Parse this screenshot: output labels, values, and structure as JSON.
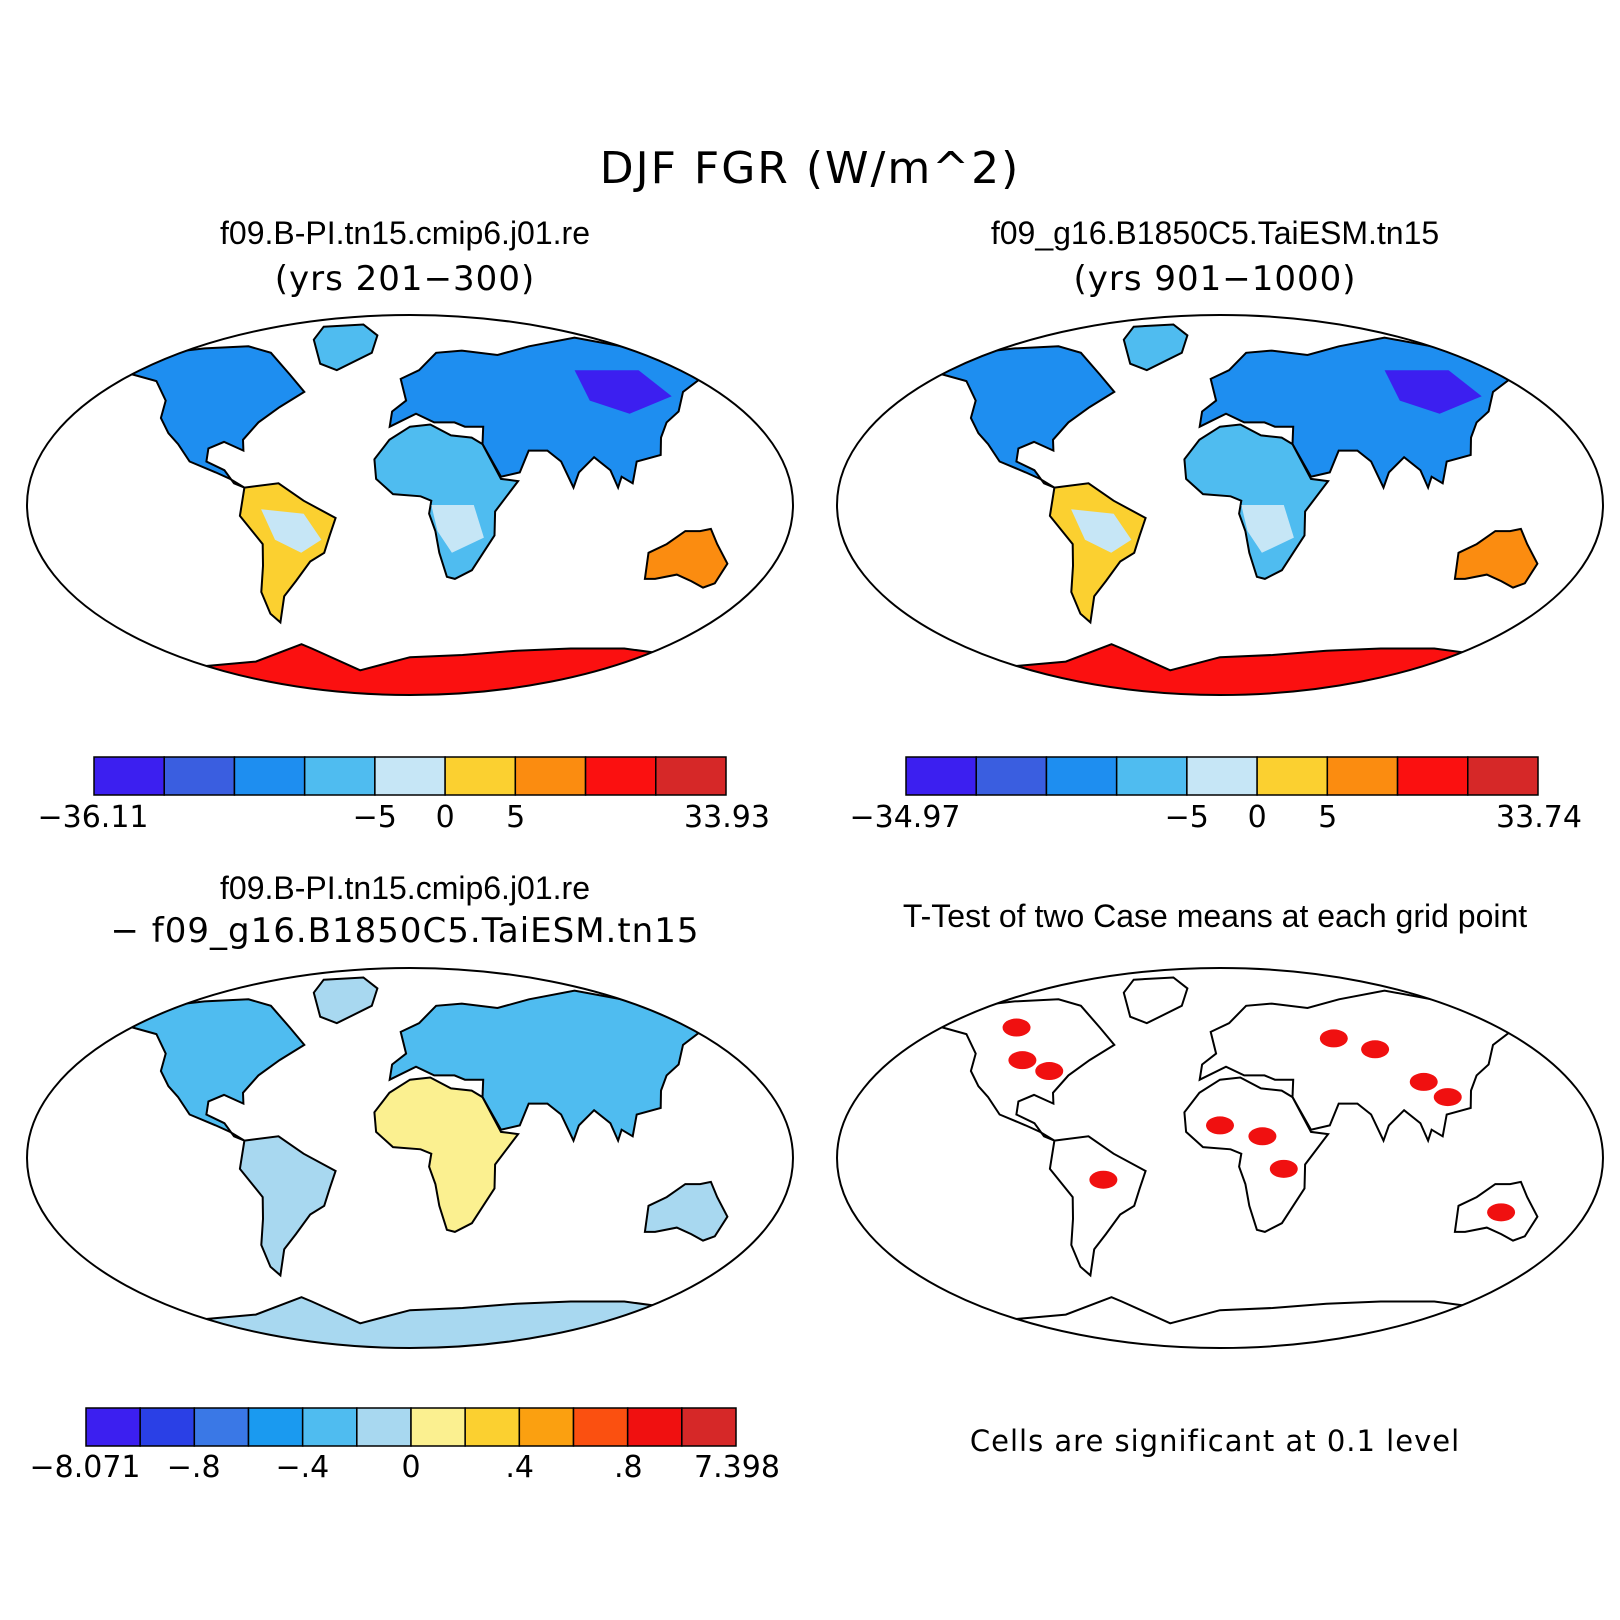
{
  "title": "DJF FGR (W/m^2)",
  "panels": [
    {
      "title": "f09.B-PI.tn15.cmip6.j01.re",
      "subtitle": "(yrs 201−300)",
      "colorbar": {
        "colors": [
          "#3c1ff0",
          "#3a5ee0",
          "#1e8ef0",
          "#4fbcf0",
          "#c6e6f6",
          "#fbd030",
          "#fb8c10",
          "#fb1010",
          "#d62828"
        ],
        "labels": [
          "−36.11",
          "−5",
          "0",
          "5",
          "33.93"
        ],
        "label_boundaries": [
          0,
          4,
          5,
          6,
          9
        ]
      }
    },
    {
      "title": "f09_g16.B1850C5.TaiESM.tn15",
      "subtitle": "(yrs 901−1000)",
      "colorbar": {
        "colors": [
          "#3c1ff0",
          "#3a5ee0",
          "#1e8ef0",
          "#4fbcf0",
          "#c6e6f6",
          "#fbd030",
          "#fb8c10",
          "#fb1010",
          "#d62828"
        ],
        "labels": [
          "−34.97",
          "−5",
          "0",
          "5",
          "33.74"
        ],
        "label_boundaries": [
          0,
          4,
          5,
          6,
          9
        ]
      }
    },
    {
      "title": "f09.B-PI.tn15.cmip6.j01.re",
      "subtitle": "− f09_g16.B1850C5.TaiESM.tn15",
      "colorbar": {
        "colors": [
          "#3c1ff0",
          "#2a40e6",
          "#3a78e6",
          "#1a9af0",
          "#4fbcf0",
          "#a8d8f0",
          "#fbf090",
          "#fbd030",
          "#fba010",
          "#fb5010",
          "#f01010",
          "#d62828"
        ],
        "labels": [
          "−8.071",
          "−.8",
          "−.4",
          "0",
          ".4",
          ".8",
          "7.398"
        ],
        "label_boundaries": [
          0,
          2,
          4,
          6,
          8,
          10,
          12
        ]
      }
    },
    {
      "title": "T-Test of two Case means at each grid point",
      "note": "Cells are significant at 0.1 level"
    }
  ]
}
